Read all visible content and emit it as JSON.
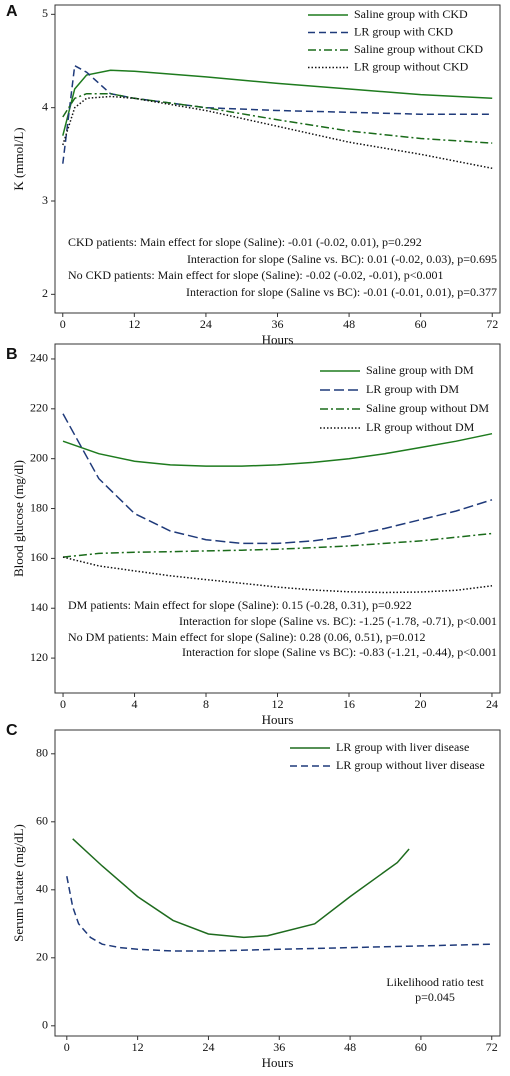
{
  "chart_data": [
    {
      "type": "line",
      "panel": "A",
      "ylabel": "K (mmol/L)",
      "xlabel": "Hours",
      "xlim": [
        -1.3,
        73.3
      ],
      "ylim": [
        1.8,
        5.1
      ],
      "xticks": [
        0,
        12,
        24,
        36,
        48,
        60,
        72
      ],
      "yticks": [
        2,
        3,
        4,
        5
      ],
      "legend": "upper right",
      "series": [
        {
          "name": "Saline group with CKD",
          "color": "#1e7b1e",
          "style": "solid",
          "x": [
            0,
            2,
            4,
            8,
            12,
            24,
            36,
            48,
            60,
            72
          ],
          "values": [
            3.7,
            4.2,
            4.35,
            4.4,
            4.39,
            4.33,
            4.26,
            4.2,
            4.14,
            4.1
          ]
        },
        {
          "name": "LR group with CKD",
          "color": "#1f3a7a",
          "style": "dashed",
          "x": [
            0,
            2,
            4,
            8,
            12,
            24,
            36,
            48,
            60,
            72
          ],
          "values": [
            3.4,
            4.45,
            4.38,
            4.15,
            4.1,
            4.0,
            3.97,
            3.95,
            3.93,
            3.93
          ]
        },
        {
          "name": "Saline group without CKD",
          "color": "#1a6b1a",
          "style": "dashdot",
          "x": [
            0,
            2,
            4,
            8,
            12,
            24,
            36,
            48,
            60,
            72
          ],
          "values": [
            3.9,
            4.1,
            4.15,
            4.15,
            4.1,
            4.0,
            3.87,
            3.75,
            3.67,
            3.62
          ]
        },
        {
          "name": "LR group without CKD",
          "color": "#111111",
          "style": "dotted",
          "x": [
            0,
            2,
            4,
            8,
            12,
            24,
            36,
            48,
            60,
            72
          ],
          "values": [
            3.6,
            4.0,
            4.1,
            4.12,
            4.1,
            3.97,
            3.8,
            3.63,
            3.5,
            3.35
          ]
        }
      ],
      "annotations": [
        "CKD patients: Main effect for slope (Saline): -0.01 (-0.02, 0.01), p=0.292",
        "Interaction for slope (Saline vs. BC): 0.01 (-0.02, 0.03), p=0.695",
        "No CKD patients: Main effect for slope (Saline): -0.02 (-0.02, -0.01), p<0.001",
        "Interaction for slope (Saline vs BC): -0.01 (-0.01, 0.01), p=0.377"
      ]
    },
    {
      "type": "line",
      "panel": "B",
      "ylabel": "Blood glucose (mg/dl)",
      "xlabel": "Hours",
      "xlim": [
        -0.45,
        24.45
      ],
      "ylim": [
        106,
        246
      ],
      "xticks": [
        0,
        4,
        8,
        12,
        16,
        20,
        24
      ],
      "yticks": [
        120,
        140,
        160,
        180,
        200,
        220,
        240
      ],
      "legend": "upper right",
      "series": [
        {
          "name": "Saline group with DM",
          "color": "#1e7b1e",
          "style": "solid",
          "x": [
            0,
            2,
            4,
            6,
            8,
            10,
            12,
            14,
            16,
            18,
            20,
            22,
            24
          ],
          "values": [
            207,
            202,
            199,
            197.5,
            197,
            197,
            197.5,
            198.5,
            200,
            202,
            204.5,
            207,
            210
          ]
        },
        {
          "name": "LR group with DM",
          "color": "#1f3a7a",
          "style": "longdash",
          "x": [
            0,
            2,
            4,
            6,
            8,
            10,
            12,
            14,
            16,
            18,
            20,
            22,
            24
          ],
          "values": [
            218,
            192,
            178,
            171,
            167.5,
            166,
            166,
            167,
            169,
            172,
            175.5,
            179,
            183.5
          ]
        },
        {
          "name": "Saline group without DM",
          "color": "#1a6b1a",
          "style": "dashdot",
          "x": [
            0,
            2,
            4,
            6,
            8,
            10,
            12,
            14,
            16,
            18,
            20,
            22,
            24
          ],
          "values": [
            160.5,
            162,
            162.5,
            162.7,
            163,
            163.3,
            163.7,
            164.3,
            165,
            166,
            167,
            168.5,
            170
          ]
        },
        {
          "name": "LR group without DM",
          "color": "#111111",
          "style": "dotted",
          "x": [
            0,
            2,
            4,
            6,
            8,
            10,
            12,
            14,
            16,
            18,
            20,
            22,
            24
          ],
          "values": [
            160.5,
            157,
            155,
            153,
            151.5,
            150,
            148.5,
            147.3,
            146.6,
            146.3,
            146.5,
            147.2,
            149
          ]
        }
      ],
      "annotations": [
        "DM patients: Main effect for slope (Saline): 0.15 (-0.28, 0.31), p=0.922",
        "Interaction for slope (Saline vs. BC): -1.25 (-1.78, -0.71), p<0.001",
        "No DM patients: Main effect for slope (Saline): 0.28 (0.06, 0.51), p=0.012",
        "Interaction for slope (Saline vs BC): -0.83 (-1.21, -0.44), p<0.001"
      ]
    },
    {
      "type": "line",
      "panel": "C",
      "ylabel": "Serum lactate (mg/dL)",
      "xlabel": "Hours",
      "xlim": [
        -2,
        73.4
      ],
      "ylim": [
        -3,
        87
      ],
      "xticks": [
        0,
        12,
        24,
        36,
        48,
        60,
        72
      ],
      "yticks": [
        0,
        20,
        40,
        60,
        80
      ],
      "legend": "upper right",
      "series": [
        {
          "name": "LR group with liver disease",
          "color": "#1e6b1e",
          "style": "solid",
          "x": [
            1,
            6,
            12,
            18,
            24,
            30,
            34,
            42,
            48,
            56,
            58
          ],
          "values": [
            55,
            47,
            38,
            31,
            27,
            26,
            26.5,
            30,
            38,
            48,
            52
          ]
        },
        {
          "name": "LR group without liver disease",
          "color": "#1f3a7a",
          "style": "dashed",
          "x": [
            0,
            1,
            2,
            4,
            6,
            9,
            12,
            18,
            24,
            36,
            48,
            60,
            72
          ],
          "values": [
            44,
            35,
            30,
            26,
            24,
            23,
            22.5,
            22,
            22,
            22.5,
            23,
            23.5,
            24
          ]
        }
      ],
      "annotations": [
        "Likelihood ratio test",
        "p=0.045"
      ]
    }
  ]
}
